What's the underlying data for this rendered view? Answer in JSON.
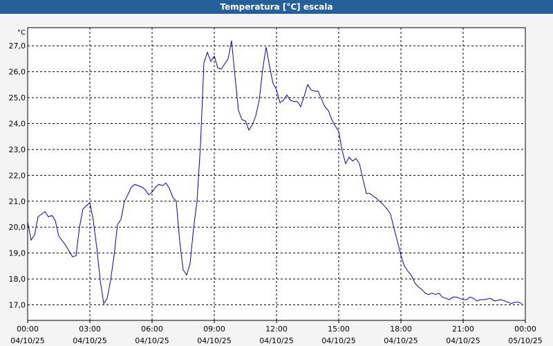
{
  "chart_data": {
    "type": "line",
    "title": "Temperatura [°C] escala",
    "y_unit": "°C",
    "x": [
      0,
      10,
      20,
      30,
      50,
      60,
      70,
      80,
      90,
      110,
      130,
      140,
      150,
      160,
      180,
      190,
      200,
      210,
      220,
      230,
      240,
      250,
      260,
      270,
      280,
      290,
      300,
      310,
      330,
      340,
      350,
      360,
      370,
      380,
      390,
      400,
      410,
      420,
      430,
      440,
      450,
      460,
      470,
      480,
      490,
      500,
      510,
      520,
      530,
      540,
      550,
      560,
      580,
      590,
      600,
      610,
      620,
      630,
      640,
      650,
      660,
      670,
      680,
      690,
      700,
      710,
      720,
      730,
      740,
      750,
      760,
      770,
      780,
      790,
      800,
      810,
      820,
      830,
      840,
      850,
      860,
      870,
      880,
      890,
      900,
      910,
      920,
      930,
      940,
      950,
      960,
      970,
      980,
      990,
      1010,
      1030,
      1040,
      1050,
      1060,
      1070,
      1080,
      1090,
      1100,
      1110,
      1120,
      1130,
      1140,
      1150,
      1160,
      1170,
      1180,
      1190,
      1200,
      1210,
      1220,
      1230,
      1240,
      1260,
      1270,
      1280,
      1290,
      1300,
      1310,
      1320,
      1340,
      1350,
      1370,
      1380,
      1390,
      1400,
      1410,
      1420,
      1430
    ],
    "series": [
      {
        "name": "Temperatura",
        "color": "#0000c0",
        "values": [
          20.2,
          19.5,
          19.7,
          20.4,
          20.6,
          20.4,
          20.45,
          20.25,
          19.65,
          19.3,
          18.85,
          18.9,
          20.0,
          20.7,
          20.95,
          20.25,
          19.2,
          17.95,
          17.05,
          17.25,
          17.95,
          18.9,
          20.1,
          20.3,
          21.0,
          21.25,
          21.55,
          21.65,
          21.55,
          21.45,
          21.25,
          21.35,
          21.55,
          21.65,
          21.6,
          21.7,
          21.5,
          21.15,
          21.0,
          19.45,
          18.35,
          18.15,
          18.6,
          19.95,
          21.0,
          23.15,
          26.35,
          26.75,
          26.4,
          26.6,
          26.15,
          26.1,
          26.5,
          27.2,
          25.8,
          24.5,
          24.15,
          24.1,
          23.75,
          23.95,
          24.3,
          24.9,
          26.1,
          26.95,
          26.2,
          25.55,
          25.3,
          24.8,
          24.9,
          25.1,
          24.9,
          24.85,
          24.85,
          24.65,
          25.05,
          25.5,
          25.3,
          25.25,
          25.25,
          24.95,
          24.65,
          24.5,
          24.15,
          23.9,
          23.7,
          22.95,
          22.45,
          22.7,
          22.55,
          22.65,
          22.45,
          21.85,
          21.3,
          21.3,
          21.1,
          20.85,
          20.7,
          20.5,
          19.95,
          19.45,
          18.9,
          18.5,
          18.3,
          18.15,
          17.85,
          17.7,
          17.6,
          17.45,
          17.4,
          17.45,
          17.4,
          17.45,
          17.3,
          17.25,
          17.2,
          17.3,
          17.3,
          17.2,
          17.2,
          17.3,
          17.25,
          17.15,
          17.2,
          17.2,
          17.25,
          17.15,
          17.2,
          17.15,
          17.1,
          17.05,
          17.1,
          17.1,
          17.05
        ]
      }
    ],
    "xlim": [
      0,
      1440
    ],
    "xticks": [
      {
        "value": 0,
        "label": "00:00",
        "date": "04/10/25"
      },
      {
        "value": 180,
        "label": "03:00",
        "date": "04/10/25"
      },
      {
        "value": 360,
        "label": "06:00",
        "date": "04/10/25"
      },
      {
        "value": 540,
        "label": "09:00",
        "date": "04/10/25"
      },
      {
        "value": 720,
        "label": "12:00",
        "date": "04/10/25"
      },
      {
        "value": 900,
        "label": "15:00",
        "date": "04/10/25"
      },
      {
        "value": 1080,
        "label": "18:00",
        "date": "04/10/25"
      },
      {
        "value": 1260,
        "label": "21:00",
        "date": "04/10/25"
      },
      {
        "value": 1440,
        "label": "00:00",
        "date": "05/10/25"
      }
    ],
    "ylim": [
      16.4,
      27.7
    ],
    "yticks": [
      {
        "value": 17,
        "label": "17,0"
      },
      {
        "value": 18,
        "label": "18,0"
      },
      {
        "value": 19,
        "label": "19,0"
      },
      {
        "value": 20,
        "label": "20,0"
      },
      {
        "value": 21,
        "label": "21,0"
      },
      {
        "value": 22,
        "label": "22,0"
      },
      {
        "value": 23,
        "label": "23,0"
      },
      {
        "value": 24,
        "label": "24,0"
      },
      {
        "value": 25,
        "label": "25,0"
      },
      {
        "value": 26,
        "label": "26,0"
      },
      {
        "value": 27,
        "label": "27,0"
      }
    ],
    "grid": true
  }
}
